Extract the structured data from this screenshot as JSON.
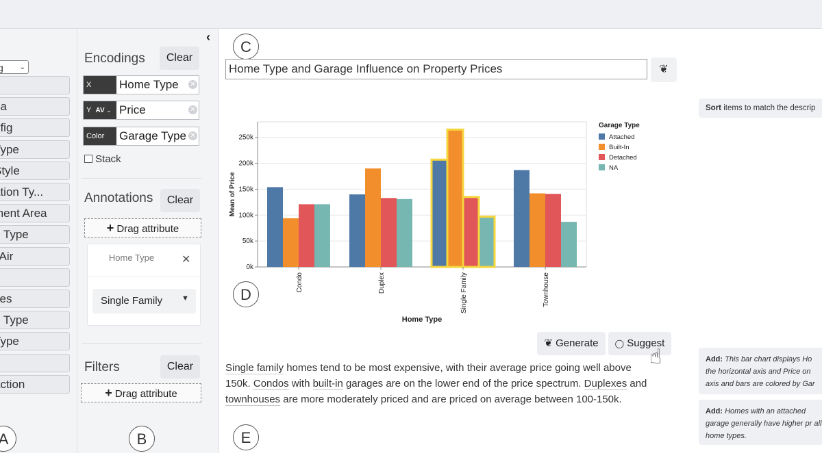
{
  "panel_a": {
    "label": "A",
    "dataset_select": "g",
    "attributes": [
      "",
      "ea",
      "nfig",
      " Type",
      "Style",
      "ation Ty...",
      "ment Area",
      "g Type",
      "l Air",
      "s",
      "ces",
      "e Type",
      " Type",
      "",
      "action"
    ]
  },
  "panel_b": {
    "label": "B",
    "encodings": {
      "title": "Encodings",
      "clear": "Clear",
      "x": {
        "channel": "X",
        "field": "Home Type"
      },
      "y": {
        "channel": "Y",
        "agg": "AV",
        "field": "Price"
      },
      "color": {
        "channel": "Color",
        "field": "Garage Type"
      },
      "stack_label": "Stack"
    },
    "annotations": {
      "title": "Annotations",
      "clear": "Clear",
      "drag": "Drag attribute",
      "card_title": "Home Type",
      "card_value": "Single Family"
    },
    "filters": {
      "title": "Filters",
      "clear": "Clear",
      "drag": "Drag attribute"
    }
  },
  "panel_c": {
    "label": "C",
    "title": "Home Type and Garage Influence on Property Prices"
  },
  "panel_d": {
    "label": "D"
  },
  "panel_e": {
    "label": "E",
    "generate": "Generate",
    "suggest": "Suggest",
    "summary": [
      {
        "t": "Single family",
        "u": true
      },
      {
        "t": " homes tend to be most expensive, with their average price going well above 150k. ",
        "u": false
      },
      {
        "t": "Condos",
        "u": true
      },
      {
        "t": " with ",
        "u": false
      },
      {
        "t": "built-in",
        "u": true
      },
      {
        "t": " garages are on the lower end of the price spectrum. ",
        "u": false
      },
      {
        "t": "Duplexes",
        "u": true
      },
      {
        "t": " and ",
        "u": false
      },
      {
        "t": "townhouses",
        "u": true
      },
      {
        "t": " are more moderately priced and are priced on average between 100-150k.",
        "u": false
      }
    ]
  },
  "suggestions": {
    "sort": {
      "bold": "Sort",
      "text": " items to match the descrip"
    },
    "add1": {
      "bold": "Add:",
      "text": " This bar chart displays Ho the horizontal axis and Price on axis and bars are colored by Gar"
    },
    "add2": {
      "bold": "Add:",
      "text": " Homes with an attached garage generally have higher pr all home types."
    }
  },
  "colors": {
    "Attached": "#4e79a7",
    "Built-In": "#f28e2b",
    "Detached": "#e15759",
    "NA": "#76b7b2",
    "highlight": "#f5d63d"
  },
  "chart_data": {
    "type": "bar",
    "xlabel": "Home Type",
    "ylabel": "Mean of Price",
    "categories": [
      "Condo",
      "Duplex",
      "Single Family",
      "Townhouse"
    ],
    "legend_title": "Garage Type",
    "series": [
      {
        "name": "Attached",
        "values": [
          154000,
          140000,
          207000,
          187000
        ]
      },
      {
        "name": "Built-In",
        "values": [
          94000,
          190000,
          265000,
          142000
        ]
      },
      {
        "name": "Detached",
        "values": [
          121000,
          133000,
          135000,
          141000
        ]
      },
      {
        "name": "NA",
        "values": [
          121000,
          131000,
          97000,
          87000
        ]
      }
    ],
    "yticks": [
      "0k",
      "50k",
      "100k",
      "150k",
      "200k",
      "250k"
    ],
    "ylim": [
      0,
      280000
    ],
    "highlighted_category": "Single Family",
    "highlighted_bars": [
      "Built-In"
    ],
    "legend_position": "right",
    "grid": true
  }
}
